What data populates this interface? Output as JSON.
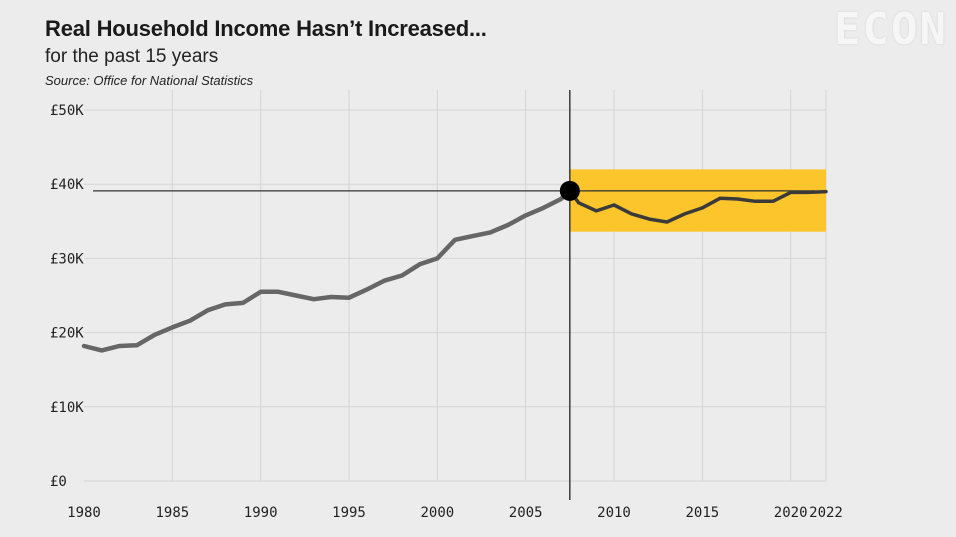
{
  "header": {
    "title": "Real Household Income Hasn’t Increased...",
    "subtitle": "for the past 15 years",
    "source": "Source: Office for National Statistics"
  },
  "watermark": "ECON",
  "colors": {
    "line": "#666666",
    "highlight_line": "#3a3a3a",
    "highlight_box": "#fbc52b",
    "grid": "#d4d4d4",
    "background": "#ececec"
  },
  "chart_data": {
    "type": "line",
    "title": "Real Household Income Hasn’t Increased...",
    "subtitle": "for the past 15 years",
    "xlabel": "",
    "ylabel": "",
    "xlim": [
      1980,
      2022
    ],
    "ylim": [
      0,
      50000
    ],
    "x_ticks": [
      1980,
      1985,
      1990,
      1995,
      2000,
      2005,
      2010,
      2015,
      2020,
      2022
    ],
    "y_ticks": [
      {
        "value": 0,
        "label": "£0"
      },
      {
        "value": 10000,
        "label": "£10K"
      },
      {
        "value": 20000,
        "label": "£20K"
      },
      {
        "value": 30000,
        "label": "£30K"
      },
      {
        "value": 40000,
        "label": "£40K"
      },
      {
        "value": 50000,
        "label": "£50K"
      }
    ],
    "grid": true,
    "series": [
      {
        "x": [
          1980,
          1981,
          1982,
          1983,
          1984,
          1985,
          1986,
          1987,
          1988,
          1989,
          1990,
          1991,
          1992,
          1993,
          1994,
          1995,
          1996,
          1997,
          1998,
          1999,
          2000,
          2001,
          2002,
          2003,
          2004,
          2005,
          2006,
          2007,
          2007.5,
          2008,
          2009,
          2010,
          2011,
          2012,
          2013,
          2014,
          2015,
          2016,
          2017,
          2018,
          2019,
          2020,
          2021,
          2022
        ],
        "y": [
          18200,
          17600,
          18200,
          18300,
          19700,
          20700,
          21600,
          23000,
          23800,
          24000,
          25500,
          25500,
          25000,
          24500,
          24800,
          24700,
          25800,
          27000,
          27700,
          29200,
          30000,
          32500,
          33000,
          33500,
          34500,
          35800,
          36800,
          38000,
          39100,
          37500,
          36400,
          37200,
          36000,
          35300,
          34900,
          36000,
          36800,
          38100,
          38000,
          37700,
          37700,
          38900,
          38900,
          39000
        ]
      }
    ],
    "highlight": {
      "x_start": 2007.5,
      "x_end": 2022,
      "y_low": 33600,
      "y_high": 42000,
      "marker": {
        "x": 2007.5,
        "y": 39100
      },
      "reference_y": 39100
    }
  }
}
